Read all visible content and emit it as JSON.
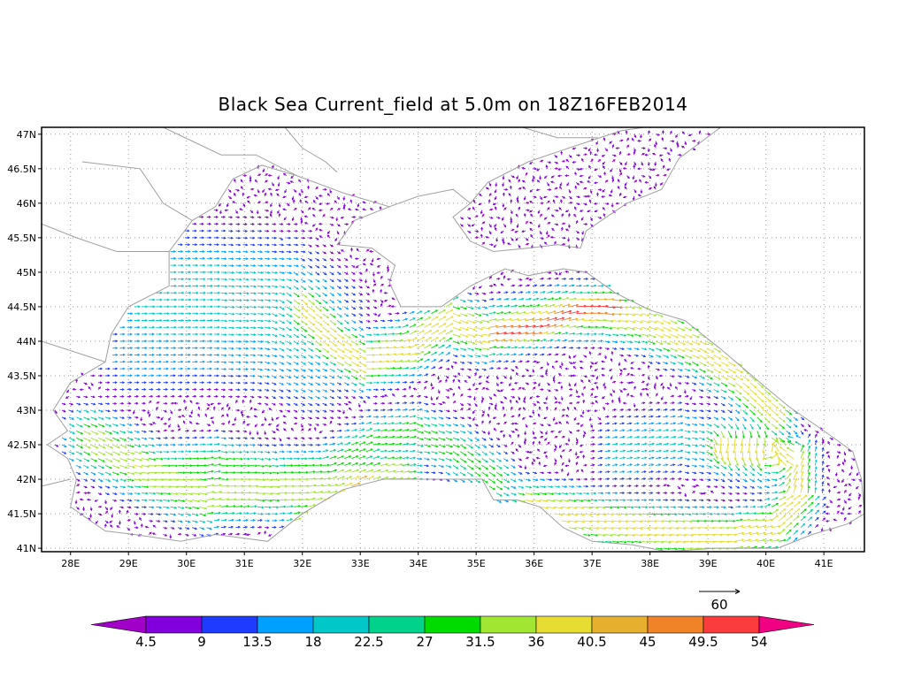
{
  "title": "Black Sea Current_field at 5.0m on 18Z16FEB2014",
  "map": {
    "lat_labels": [
      "47N",
      "46.5N",
      "46N",
      "45.5N",
      "45N",
      "44.5N",
      "44N",
      "43.5N",
      "43N",
      "42.5N",
      "42N",
      "41.5N",
      "41N"
    ],
    "lon_labels": [
      "28E",
      "29E",
      "30E",
      "31E",
      "32E",
      "33E",
      "34E",
      "35E",
      "36E",
      "37E",
      "38E",
      "39E",
      "40E",
      "41E"
    ],
    "lon_range": [
      27.5,
      41.7
    ],
    "lat_range": [
      40.95,
      47.1
    ],
    "grid": "dotted",
    "land_color": "#ffffff",
    "coastline_color": "#a0a0a0"
  },
  "reference_vector": {
    "label": "60"
  },
  "colorbar": {
    "labels": [
      "4.5",
      "9",
      "13.5",
      "18",
      "22.5",
      "27",
      "31.5",
      "36",
      "40.5",
      "45",
      "49.5",
      "54"
    ],
    "colors": [
      "#a000c8",
      "#8200dc",
      "#1e3cff",
      "#00a0ff",
      "#00c8c8",
      "#00d28c",
      "#00dc00",
      "#a0e632",
      "#e6dc32",
      "#e6af2d",
      "#f08228",
      "#fa3c3c",
      "#f00082"
    ]
  }
}
